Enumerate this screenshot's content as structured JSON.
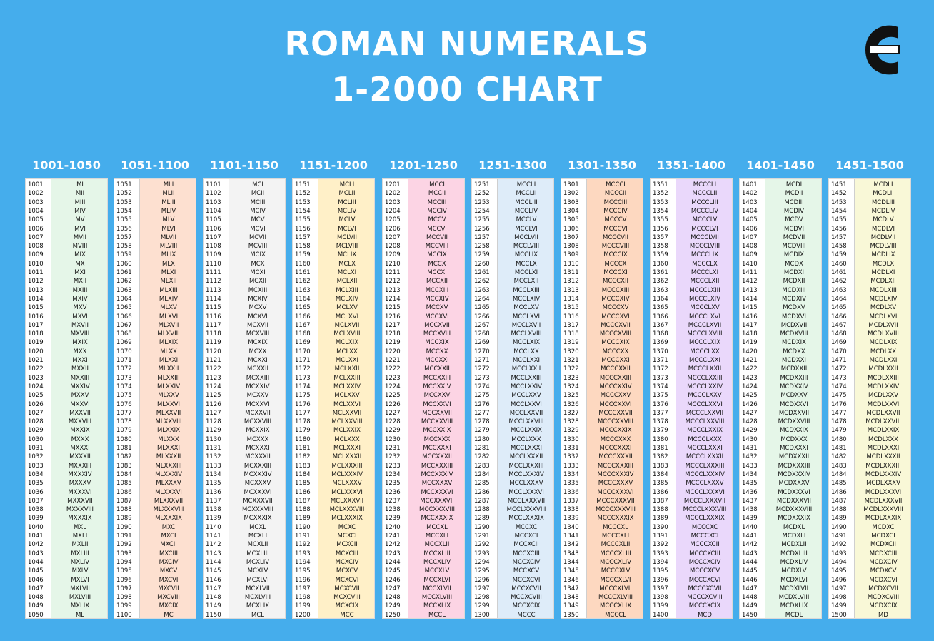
{
  "title_line1": "ROMAN NUMERALS",
  "title_line2": "1-2000 CHART",
  "logo_icon": "brand-logo-icon",
  "columns": [
    {
      "header": "1001-1050",
      "start": 1001,
      "color": "#e5f6e8"
    },
    {
      "header": "1051-1100",
      "start": 1051,
      "color": "#fde0d0"
    },
    {
      "header": "1101-1150",
      "start": 1101,
      "color": "#f3f3f3"
    },
    {
      "header": "1151-1200",
      "start": 1151,
      "color": "#fff0c8"
    },
    {
      "header": "1201-1250",
      "start": 1201,
      "color": "#fcd4e4"
    },
    {
      "header": "1251-1300",
      "start": 1251,
      "color": "#deecf9"
    },
    {
      "header": "1301-1350",
      "start": 1301,
      "color": "#fdd8c0"
    },
    {
      "header": "1351-1400",
      "start": 1351,
      "color": "#ead8fb"
    },
    {
      "header": "1401-1450",
      "start": 1401,
      "color": "#e5f6e8"
    },
    {
      "header": "1451-1500",
      "start": 1451,
      "color": "#f9f8d7"
    }
  ]
}
